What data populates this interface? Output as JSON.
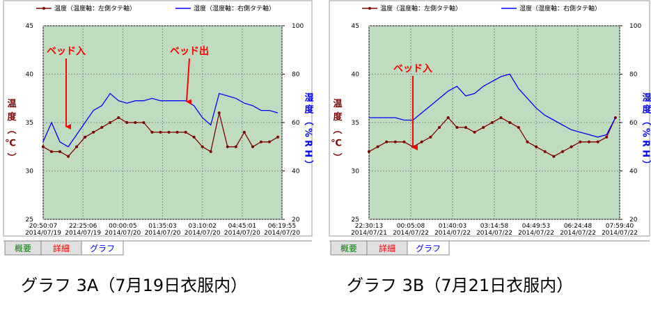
{
  "chart_data": [
    {
      "type": "line",
      "legend": "top",
      "grid": true,
      "background": "#c0dcc0",
      "x": [
        "2014/07/19 20:50",
        "2014/07/19 21:10",
        "2014/07/19 21:30",
        "2014/07/19 21:50",
        "2014/07/19 22:10",
        "2014/07/19 22:30",
        "2014/07/19 22:50",
        "2014/07/19 23:10",
        "2014/07/19 23:30",
        "2014/07/19 23:50",
        "2014/07/20 00:10",
        "2014/07/20 00:30",
        "2014/07/20 00:50",
        "2014/07/20 01:10",
        "2014/07/20 01:30",
        "2014/07/20 01:50",
        "2014/07/20 02:10",
        "2014/07/20 02:30",
        "2014/07/20 02:50",
        "2014/07/20 03:10",
        "2014/07/20 03:30",
        "2014/07/20 03:50",
        "2014/07/20 04:10",
        "2014/07/20 04:30",
        "2014/07/20 04:50",
        "2014/07/20 05:10",
        "2014/07/20 05:30",
        "2014/07/20 05:50",
        "2014/07/20 06:10"
      ],
      "xlim": [
        "2014/07/19 20:50:07",
        "2014/07/20 06:19:55"
      ],
      "xticks": [
        {
          "value": "2014/07/19 20:50:07",
          "label": "20:50:07\n2014/07/19"
        },
        {
          "value": "2014/07/19 22:25:06",
          "label": "22:25:06\n2014/07/19"
        },
        {
          "value": "2014/07/20 00:00:05",
          "label": "00:00:05\n2014/07/20"
        },
        {
          "value": "2014/07/20 01:35:03",
          "label": "01:35:03\n2014/07/20"
        },
        {
          "value": "2014/07/20 03:10:02",
          "label": "03:10:02\n2014/07/20"
        },
        {
          "value": "2014/07/20 04:45:01",
          "label": "04:45:01\n2014/07/20"
        },
        {
          "value": "2014/07/20 06:19:55",
          "label": "06:19:55\n2014/07/20"
        }
      ],
      "ylim": [
        25,
        45
      ],
      "yticks": [
        25,
        30,
        35,
        40,
        45
      ],
      "ylabel": "温度（℃）",
      "y2lim": [
        20,
        100
      ],
      "y2ticks": [
        20,
        40,
        60,
        80,
        100
      ],
      "y2label": "湿度（%RH）",
      "series": [
        {
          "name": "温度（温度軸：左側タテ軸）",
          "color": "#800000",
          "values": [
            32.5,
            32,
            32,
            31.5,
            32.5,
            33.5,
            34,
            34.5,
            35,
            35.5,
            35,
            35,
            35,
            34,
            34,
            34,
            34,
            34,
            33.5,
            32.5,
            32,
            36,
            32.5,
            32.5,
            34,
            32.5,
            33,
            33,
            33.5
          ]
        },
        {
          "name": "湿度（湿度軸：右側タテ軸）",
          "color": "#0000ff",
          "axis": "y2",
          "values": [
            52,
            60,
            52,
            50,
            55,
            60,
            65,
            67,
            72,
            69,
            68,
            69,
            69,
            70,
            69,
            69,
            69,
            69,
            67,
            62,
            59,
            72,
            71,
            70,
            68,
            67,
            65,
            65,
            64
          ]
        }
      ],
      "annotations": [
        "ベッド入",
        "ベッド出"
      ],
      "tabs": [
        "概要",
        "詳細",
        "グラフ"
      ],
      "caption": "グラフ 3A（7月19日衣服内）"
    },
    {
      "type": "line",
      "legend": "top",
      "grid": true,
      "background": "#c0dcc0",
      "x": [
        "2014/07/21 22:30",
        "2014/07/21 22:50",
        "2014/07/21 23:10",
        "2014/07/21 23:30",
        "2014/07/21 23:50",
        "2014/07/22 00:10",
        "2014/07/22 00:30",
        "2014/07/22 00:50",
        "2014/07/22 01:10",
        "2014/07/22 01:30",
        "2014/07/22 01:50",
        "2014/07/22 02:10",
        "2014/07/22 02:30",
        "2014/07/22 02:50",
        "2014/07/22 03:10",
        "2014/07/22 03:30",
        "2014/07/22 03:50",
        "2014/07/22 04:10",
        "2014/07/22 04:30",
        "2014/07/22 04:50",
        "2014/07/22 05:10",
        "2014/07/22 05:30",
        "2014/07/22 05:50",
        "2014/07/22 06:10",
        "2014/07/22 06:30",
        "2014/07/22 06:50",
        "2014/07/22 07:10",
        "2014/07/22 07:30",
        "2014/07/22 07:50"
      ],
      "xlim": [
        "2014/07/21 22:30:13",
        "2014/07/22 07:59:40"
      ],
      "xticks": [
        {
          "value": "2014/07/21 22:30:13",
          "label": "22:30:13\n2014/07/21"
        },
        {
          "value": "2014/07/22 00:05:08",
          "label": "00:05:08\n2014/07/22"
        },
        {
          "value": "2014/07/22 01:40:03",
          "label": "01:40:03\n2014/07/22"
        },
        {
          "value": "2014/07/22 03:14:58",
          "label": "03:14:58\n2014/07/22"
        },
        {
          "value": "2014/07/22 04:49:53",
          "label": "04:49:53\n2014/07/22"
        },
        {
          "value": "2014/07/22 06:24:48",
          "label": "06:24:48\n2014/07/22"
        },
        {
          "value": "2014/07/22 07:59:40",
          "label": "07:59:40\n2014/07/22"
        }
      ],
      "ylim": [
        25,
        45
      ],
      "yticks": [
        25,
        30,
        35,
        40,
        45
      ],
      "ylabel": "温度（℃）",
      "y2lim": [
        20,
        100
      ],
      "y2ticks": [
        20,
        40,
        60,
        80,
        100
      ],
      "y2label": "湿度（%RH）",
      "series": [
        {
          "name": "温度（温度軸：左側タテ軸）",
          "color": "#800000",
          "values": [
            32,
            32.5,
            33,
            33,
            33,
            32.5,
            33,
            33.5,
            34.5,
            35.5,
            34.5,
            34.5,
            34,
            34.5,
            35,
            35.5,
            35,
            34.5,
            33,
            32.5,
            32,
            31.5,
            32,
            32.5,
            33,
            33,
            33,
            33.5,
            35.5
          ]
        },
        {
          "name": "湿度（湿度軸：右側タテ軸）",
          "color": "#0000ff",
          "axis": "y2",
          "values": [
            62,
            62,
            62,
            62,
            61,
            61,
            64,
            67,
            70,
            73,
            75,
            71,
            72,
            75,
            77,
            79,
            80,
            74,
            70,
            66,
            63,
            61,
            59,
            57,
            56,
            55,
            54,
            55,
            62
          ]
        }
      ],
      "annotations": [
        "ベッド入"
      ],
      "tabs": [
        "概要",
        "詳細",
        "グラフ"
      ],
      "caption": "グラフ 3B（7月21日衣服内）"
    }
  ]
}
